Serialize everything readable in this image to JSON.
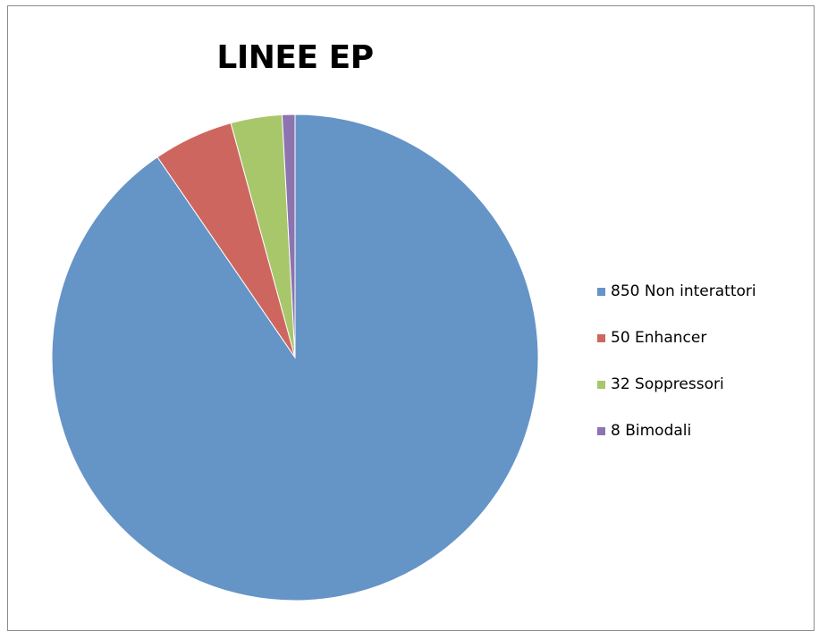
{
  "chart_data": {
    "type": "pie",
    "title": "LINEE EP",
    "categories": [
      "850 Non interattori",
      "50 Enhancer",
      "32 Soppressori",
      "8 Bimodali"
    ],
    "values": [
      850,
      50,
      32,
      8
    ],
    "colors": [
      "#6594c7",
      "#ce6660",
      "#a7c76a",
      "#8d73b0"
    ],
    "start_angle_deg": 0,
    "direction": "clockwise",
    "legend_position": "right"
  }
}
